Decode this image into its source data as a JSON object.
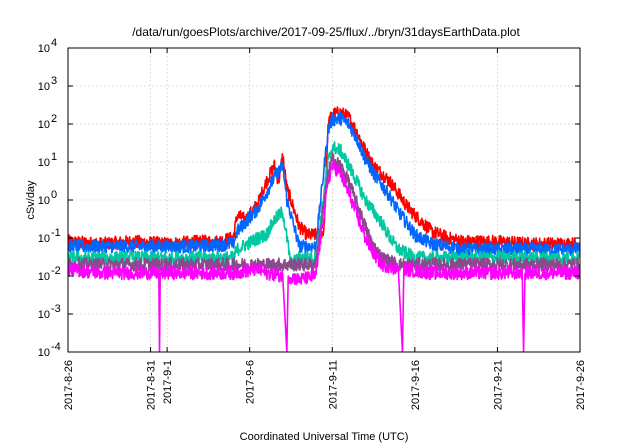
{
  "chart_data": {
    "type": "line",
    "title": "/data/run/goesPlots/archive/2017-09-25/flux/../bryn/31daysEarthData.plot",
    "xlabel": "Coordinated Universal Time (UTC)",
    "ylabel": "cSv/day",
    "yscale": "log",
    "ylim": [
      0.0001,
      10000
    ],
    "xlim": [
      "2017-08-26",
      "2017-09-26"
    ],
    "grid": true,
    "x_ticks": [
      {
        "date": "2017-08-26",
        "label": "2017-8-26"
      },
      {
        "date": "2017-08-31",
        "label": "2017-8-31"
      },
      {
        "date": "2017-09-01",
        "label": "2017-9-1"
      },
      {
        "date": "2017-09-06",
        "label": "2017-9-6"
      },
      {
        "date": "2017-09-11",
        "label": "2017-9-11"
      },
      {
        "date": "2017-09-16",
        "label": "2017-9-16"
      },
      {
        "date": "2017-09-21",
        "label": "2017-9-21"
      },
      {
        "date": "2017-09-26",
        "label": "2017-9-26"
      }
    ],
    "y_ticks": [
      {
        "value": 0.0001,
        "base": "10",
        "exp": "-4"
      },
      {
        "value": 0.001,
        "base": "10",
        "exp": "-3"
      },
      {
        "value": 0.01,
        "base": "10",
        "exp": "-2"
      },
      {
        "value": 0.1,
        "base": "10",
        "exp": "-1"
      },
      {
        "value": 1,
        "base": "10",
        "exp": "0"
      },
      {
        "value": 10,
        "base": "10",
        "exp": "1"
      },
      {
        "value": 100,
        "base": "10",
        "exp": "2"
      },
      {
        "value": 1000,
        "base": "10",
        "exp": "3"
      },
      {
        "value": 10000,
        "base": "10",
        "exp": "4"
      }
    ],
    "series": [
      {
        "color": "#ff0000",
        "points": [
          [
            "2017-08-26",
            0.08
          ],
          [
            "2017-08-28",
            0.07
          ],
          [
            "2017-08-30",
            0.08
          ],
          [
            "2017-09-01",
            0.07
          ],
          [
            "2017-09-03",
            0.08
          ],
          [
            "2017-09-04",
            0.08
          ],
          [
            "2017-09-05",
            0.1
          ],
          [
            "2017-09-05T06:00",
            0.4
          ],
          [
            "2017-09-05T18:00",
            0.3
          ],
          [
            "2017-09-06T12:00",
            0.8
          ],
          [
            "2017-09-07",
            3
          ],
          [
            "2017-09-07T12:00",
            8
          ],
          [
            "2017-09-07T18:00",
            3
          ],
          [
            "2017-09-08",
            15
          ],
          [
            "2017-09-08T06:00",
            2
          ],
          [
            "2017-09-08T12:00",
            1
          ],
          [
            "2017-09-09",
            0.2
          ],
          [
            "2017-09-09T12:00",
            0.12
          ],
          [
            "2017-09-10",
            0.12
          ],
          [
            "2017-09-10T12:00",
            0.15
          ],
          [
            "2017-09-10T18:00",
            100
          ],
          [
            "2017-09-11",
            180
          ],
          [
            "2017-09-11T12:00",
            200
          ],
          [
            "2017-09-12",
            150
          ],
          [
            "2017-09-12T12:00",
            60
          ],
          [
            "2017-09-13",
            20
          ],
          [
            "2017-09-13T12:00",
            8
          ],
          [
            "2017-09-14",
            5
          ],
          [
            "2017-09-14T12:00",
            3
          ],
          [
            "2017-09-15",
            1.5
          ],
          [
            "2017-09-15T12:00",
            0.7
          ],
          [
            "2017-09-16",
            0.4
          ],
          [
            "2017-09-16T12:00",
            0.25
          ],
          [
            "2017-09-17",
            0.15
          ],
          [
            "2017-09-18",
            0.1
          ],
          [
            "2017-09-19",
            0.08
          ],
          [
            "2017-09-21",
            0.08
          ],
          [
            "2017-09-23",
            0.07
          ],
          [
            "2017-09-26",
            0.07
          ]
        ]
      },
      {
        "color": "#0066ff",
        "points": [
          [
            "2017-08-26",
            0.06
          ],
          [
            "2017-08-28",
            0.06
          ],
          [
            "2017-08-30",
            0.06
          ],
          [
            "2017-09-01",
            0.06
          ],
          [
            "2017-09-03",
            0.06
          ],
          [
            "2017-09-05",
            0.07
          ],
          [
            "2017-09-05T06:00",
            0.15
          ],
          [
            "2017-09-06T12:00",
            0.6
          ],
          [
            "2017-09-07",
            1.5
          ],
          [
            "2017-09-07T12:00",
            4
          ],
          [
            "2017-09-08",
            8
          ],
          [
            "2017-09-08T06:00",
            1
          ],
          [
            "2017-09-08T12:00",
            0.4
          ],
          [
            "2017-09-09",
            0.06
          ],
          [
            "2017-09-10",
            0.06
          ],
          [
            "2017-09-10T18:00",
            70
          ],
          [
            "2017-09-11",
            130
          ],
          [
            "2017-09-11T12:00",
            140
          ],
          [
            "2017-09-12",
            100
          ],
          [
            "2017-09-12T12:00",
            40
          ],
          [
            "2017-09-13",
            12
          ],
          [
            "2017-09-13T12:00",
            5
          ],
          [
            "2017-09-14",
            2.5
          ],
          [
            "2017-09-14T12:00",
            1.2
          ],
          [
            "2017-09-15",
            0.5
          ],
          [
            "2017-09-15T12:00",
            0.25
          ],
          [
            "2017-09-16",
            0.12
          ],
          [
            "2017-09-17",
            0.07
          ],
          [
            "2017-09-19",
            0.05
          ],
          [
            "2017-09-21",
            0.05
          ],
          [
            "2017-09-23",
            0.05
          ],
          [
            "2017-09-26",
            0.05
          ]
        ]
      },
      {
        "color": "#00c8a0",
        "points": [
          [
            "2017-08-26",
            0.03
          ],
          [
            "2017-08-28",
            0.03
          ],
          [
            "2017-08-30",
            0.03
          ],
          [
            "2017-09-01",
            0.03
          ],
          [
            "2017-09-03",
            0.03
          ],
          [
            "2017-09-05",
            0.03
          ],
          [
            "2017-09-05T06:00",
            0.05
          ],
          [
            "2017-09-06T12:00",
            0.1
          ],
          [
            "2017-09-07",
            0.12
          ],
          [
            "2017-09-07T12:00",
            0.3
          ],
          [
            "2017-09-08",
            0.5
          ],
          [
            "2017-09-08T06:00",
            0.1
          ],
          [
            "2017-09-08T12:00",
            0.02
          ],
          [
            "2017-09-09",
            0.03
          ],
          [
            "2017-09-10",
            0.03
          ],
          [
            "2017-09-10T18:00",
            10
          ],
          [
            "2017-09-11",
            25
          ],
          [
            "2017-09-11T12:00",
            20
          ],
          [
            "2017-09-12",
            8
          ],
          [
            "2017-09-12T12:00",
            3
          ],
          [
            "2017-09-13",
            1
          ],
          [
            "2017-09-13T12:00",
            0.5
          ],
          [
            "2017-09-14",
            0.25
          ],
          [
            "2017-09-14T12:00",
            0.1
          ],
          [
            "2017-09-15",
            0.05
          ],
          [
            "2017-09-16",
            0.03
          ],
          [
            "2017-09-18",
            0.03
          ],
          [
            "2017-09-21",
            0.03
          ],
          [
            "2017-09-23",
            0.03
          ],
          [
            "2017-09-26",
            0.03
          ]
        ]
      },
      {
        "color": "#8b4a8b",
        "points": [
          [
            "2017-08-26",
            0.02
          ],
          [
            "2017-08-30",
            0.02
          ],
          [
            "2017-09-03",
            0.02
          ],
          [
            "2017-09-05",
            0.02
          ],
          [
            "2017-09-07",
            0.02
          ],
          [
            "2017-09-09",
            0.02
          ],
          [
            "2017-09-10",
            0.02
          ],
          [
            "2017-09-10T18:00",
            5
          ],
          [
            "2017-09-11",
            12
          ],
          [
            "2017-09-11T12:00",
            8
          ],
          [
            "2017-09-12",
            3
          ],
          [
            "2017-09-12T12:00",
            0.8
          ],
          [
            "2017-09-13",
            0.2
          ],
          [
            "2017-09-13T12:00",
            0.06
          ],
          [
            "2017-09-14",
            0.03
          ],
          [
            "2017-09-15",
            0.02
          ],
          [
            "2017-09-18",
            0.02
          ],
          [
            "2017-09-21",
            0.02
          ],
          [
            "2017-09-26",
            0.02
          ]
        ]
      },
      {
        "color": "#ff00ff",
        "points": [
          [
            "2017-08-26",
            0.015
          ],
          [
            "2017-08-28",
            0.012
          ],
          [
            "2017-08-30",
            0.012
          ],
          [
            "2017-08-31T12:00",
            0.012
          ],
          [
            "2017-08-31T13:00",
            0.0001
          ],
          [
            "2017-08-31T14:00",
            0.012
          ],
          [
            "2017-09-02",
            0.012
          ],
          [
            "2017-09-04",
            0.012
          ],
          [
            "2017-09-05",
            0.012
          ],
          [
            "2017-09-06T12:00",
            0.015
          ],
          [
            "2017-09-07",
            0.012
          ],
          [
            "2017-09-08",
            0.01
          ],
          [
            "2017-09-08T06:00",
            0.0001
          ],
          [
            "2017-09-08T08:00",
            0.01
          ],
          [
            "2017-09-09",
            0.008
          ],
          [
            "2017-09-10",
            0.01
          ],
          [
            "2017-09-10T18:00",
            3
          ],
          [
            "2017-09-11",
            8
          ],
          [
            "2017-09-11T12:00",
            5
          ],
          [
            "2017-09-12",
            1.5
          ],
          [
            "2017-09-12T12:00",
            0.4
          ],
          [
            "2017-09-13",
            0.1
          ],
          [
            "2017-09-13T12:00",
            0.04
          ],
          [
            "2017-09-14",
            0.02
          ],
          [
            "2017-09-15",
            0.015
          ],
          [
            "2017-09-15T06:00",
            0.0001
          ],
          [
            "2017-09-15T08:00",
            0.015
          ],
          [
            "2017-09-17",
            0.012
          ],
          [
            "2017-09-19",
            0.012
          ],
          [
            "2017-09-21",
            0.012
          ],
          [
            "2017-09-22T12:00",
            0.012
          ],
          [
            "2017-09-22T14:00",
            0.0001
          ],
          [
            "2017-09-22T16:00",
            0.012
          ],
          [
            "2017-09-24",
            0.012
          ],
          [
            "2017-09-26",
            0.012
          ]
        ]
      }
    ]
  }
}
